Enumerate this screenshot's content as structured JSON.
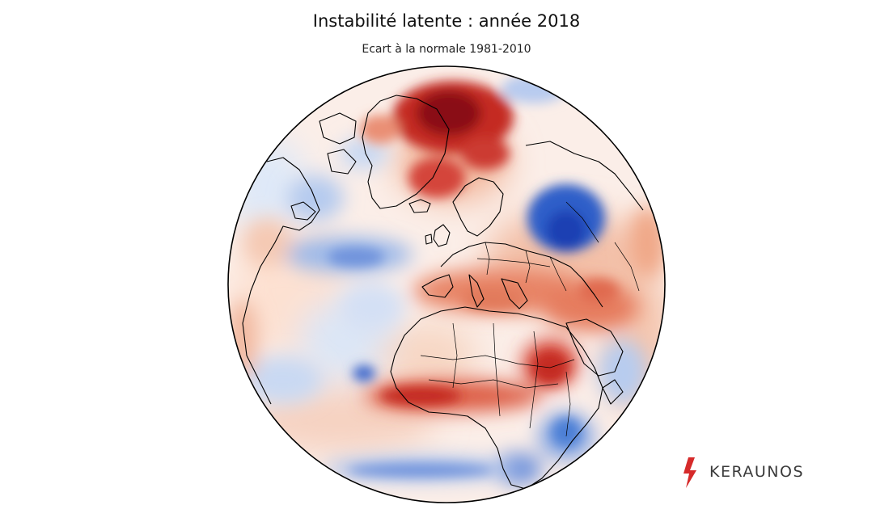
{
  "title": "Instabilité latente : année 2018",
  "subtitle": "Ecart à la normale 1981-2010",
  "brand": {
    "name": "KERAUNOS",
    "icon": "lightning-bolt-icon",
    "icon_color": "#d62a2a"
  },
  "colors": {
    "strong_positive": "#67000d",
    "positive": "#d6402f",
    "weak_positive": "#f7c1a8",
    "neutral": "#ffffff",
    "weak_negative": "#c3d6f0",
    "negative": "#4c7fd6",
    "strong_negative": "#1a3fb3",
    "borders": "#000000"
  }
}
